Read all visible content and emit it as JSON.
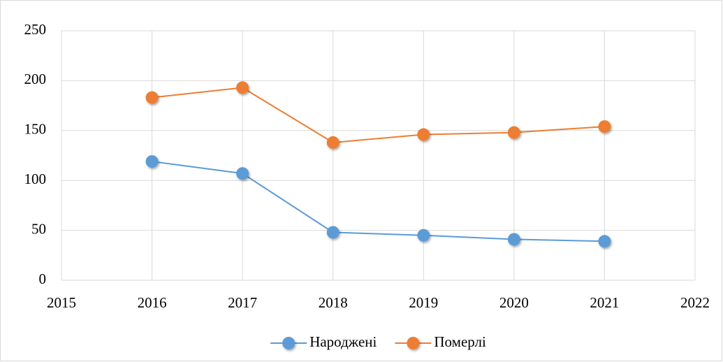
{
  "chart_data": {
    "type": "line",
    "x": [
      2016,
      2017,
      2018,
      2019,
      2020,
      2021
    ],
    "xlim": [
      2015,
      2022
    ],
    "xticks": [
      2015,
      2016,
      2017,
      2018,
      2019,
      2020,
      2021,
      2022
    ],
    "ylim": [
      0,
      250
    ],
    "yticks": [
      0,
      50,
      100,
      150,
      200,
      250
    ],
    "grid": true,
    "legend": "bottom",
    "series": [
      {
        "name": "Народжені",
        "color": "#5b9bd5",
        "values": [
          119,
          107,
          48,
          45,
          41,
          39
        ]
      },
      {
        "name": "Померлі",
        "color": "#ed7d31",
        "values": [
          183,
          193,
          138,
          146,
          148,
          154
        ]
      }
    ]
  }
}
